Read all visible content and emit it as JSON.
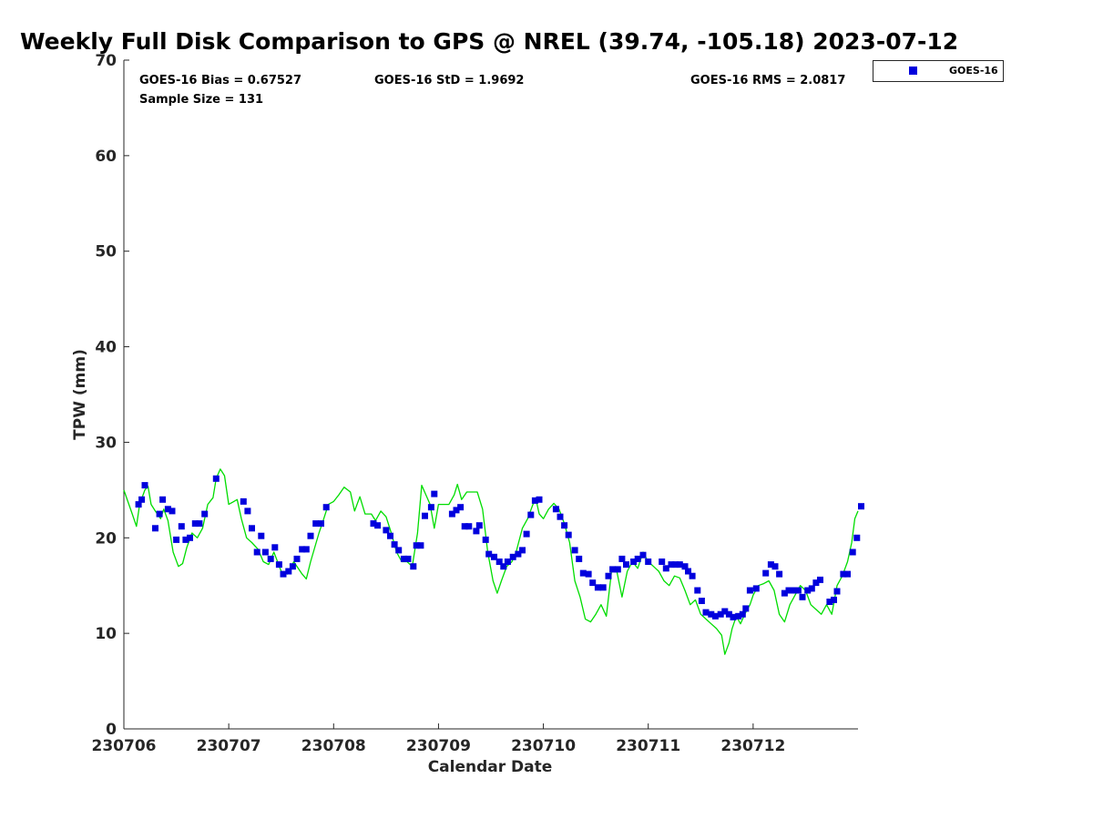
{
  "chart_data": {
    "type": "line+scatter",
    "title": "Weekly Full Disk Comparison to GPS @ NREL (39.74, -105.18) 2023-07-12",
    "xlabel": "Calendar Date",
    "ylabel": "TPW (mm)",
    "xlim": [
      230706,
      230713
    ],
    "ylim": [
      0,
      70
    ],
    "x_ticks": [
      "230706",
      "230707",
      "230708",
      "230709",
      "230710",
      "230711",
      "230712"
    ],
    "y_ticks": [
      "0",
      "10",
      "20",
      "30",
      "40",
      "50",
      "60",
      "70"
    ],
    "stats": {
      "bias": "GOES-16 Bias = 0.67527",
      "std": "GOES-16 StD = 1.9692",
      "rms": "GOES-16 RMS = 2.0817",
      "sample": "Sample Size = 131"
    },
    "legend": [
      {
        "name": "GOES-16",
        "color": "#0000dd",
        "marker": "square"
      }
    ],
    "series": [
      {
        "name": "GPS",
        "type": "line",
        "color": "#00dd00",
        "points": [
          [
            0.0,
            25.0
          ],
          [
            0.08,
            22.5
          ],
          [
            0.12,
            21.2
          ],
          [
            0.15,
            23.5
          ],
          [
            0.2,
            25.0
          ],
          [
            0.23,
            25.4
          ],
          [
            0.26,
            23.5
          ],
          [
            0.3,
            22.8
          ],
          [
            0.35,
            22.0
          ],
          [
            0.38,
            23.0
          ],
          [
            0.42,
            21.8
          ],
          [
            0.47,
            18.5
          ],
          [
            0.52,
            17.0
          ],
          [
            0.56,
            17.3
          ],
          [
            0.6,
            19.0
          ],
          [
            0.65,
            20.5
          ],
          [
            0.7,
            20.0
          ],
          [
            0.75,
            21.0
          ],
          [
            0.8,
            23.5
          ],
          [
            0.85,
            24.2
          ],
          [
            0.88,
            26.2
          ],
          [
            0.92,
            27.2
          ],
          [
            0.96,
            26.5
          ],
          [
            1.0,
            23.5
          ],
          [
            1.08,
            24.0
          ],
          [
            1.12,
            22.0
          ],
          [
            1.17,
            20.0
          ],
          [
            1.22,
            19.5
          ],
          [
            1.28,
            18.8
          ],
          [
            1.33,
            17.5
          ],
          [
            1.38,
            17.2
          ],
          [
            1.43,
            18.5
          ],
          [
            1.5,
            16.5
          ],
          [
            1.56,
            16.2
          ],
          [
            1.62,
            17.5
          ],
          [
            1.7,
            16.2
          ],
          [
            1.74,
            15.7
          ],
          [
            1.78,
            17.5
          ],
          [
            1.86,
            20.5
          ],
          [
            1.9,
            21.8
          ],
          [
            1.95,
            23.5
          ],
          [
            2.0,
            23.8
          ],
          [
            2.05,
            24.5
          ],
          [
            2.1,
            25.3
          ],
          [
            2.16,
            24.8
          ],
          [
            2.2,
            22.8
          ],
          [
            2.25,
            24.3
          ],
          [
            2.3,
            22.5
          ],
          [
            2.36,
            22.5
          ],
          [
            2.4,
            21.8
          ],
          [
            2.45,
            22.8
          ],
          [
            2.5,
            22.2
          ],
          [
            2.55,
            20.5
          ],
          [
            2.6,
            18.5
          ],
          [
            2.65,
            17.5
          ],
          [
            2.7,
            17.5
          ],
          [
            2.75,
            17.0
          ],
          [
            2.8,
            20.5
          ],
          [
            2.84,
            25.5
          ],
          [
            2.88,
            24.5
          ],
          [
            2.92,
            23.5
          ],
          [
            2.96,
            21.0
          ],
          [
            3.0,
            23.5
          ],
          [
            3.05,
            23.5
          ],
          [
            3.1,
            23.5
          ],
          [
            3.15,
            24.5
          ],
          [
            3.18,
            25.6
          ],
          [
            3.22,
            24.0
          ],
          [
            3.27,
            24.8
          ],
          [
            3.32,
            24.8
          ],
          [
            3.37,
            24.8
          ],
          [
            3.42,
            23.0
          ],
          [
            3.47,
            18.5
          ],
          [
            3.52,
            15.5
          ],
          [
            3.56,
            14.2
          ],
          [
            3.6,
            15.5
          ],
          [
            3.65,
            17.0
          ],
          [
            3.7,
            17.5
          ],
          [
            3.74,
            18.5
          ],
          [
            3.8,
            21.0
          ],
          [
            3.85,
            22.0
          ],
          [
            3.9,
            23.5
          ],
          [
            3.93,
            24.0
          ],
          [
            3.96,
            22.5
          ],
          [
            4.0,
            22.0
          ],
          [
            4.05,
            23.0
          ],
          [
            4.1,
            23.6
          ],
          [
            4.15,
            23.0
          ],
          [
            4.2,
            21.5
          ],
          [
            4.25,
            19.5
          ],
          [
            4.3,
            15.5
          ],
          [
            4.35,
            13.8
          ],
          [
            4.4,
            11.5
          ],
          [
            4.45,
            11.2
          ],
          [
            4.5,
            12.0
          ],
          [
            4.55,
            13.0
          ],
          [
            4.6,
            11.8
          ],
          [
            4.65,
            16.5
          ],
          [
            4.7,
            16.5
          ],
          [
            4.75,
            13.8
          ],
          [
            4.8,
            16.5
          ],
          [
            4.85,
            17.5
          ],
          [
            4.9,
            16.8
          ],
          [
            4.95,
            18.5
          ],
          [
            5.0,
            17.5
          ],
          [
            5.05,
            17.0
          ],
          [
            5.1,
            16.5
          ],
          [
            5.15,
            15.5
          ],
          [
            5.2,
            15.0
          ],
          [
            5.25,
            16.0
          ],
          [
            5.3,
            15.8
          ],
          [
            5.35,
            14.5
          ],
          [
            5.4,
            13.0
          ],
          [
            5.45,
            13.5
          ],
          [
            5.5,
            12.0
          ],
          [
            5.55,
            11.5
          ],
          [
            5.6,
            11.0
          ],
          [
            5.65,
            10.5
          ],
          [
            5.7,
            9.8
          ],
          [
            5.73,
            7.8
          ],
          [
            5.77,
            9.0
          ],
          [
            5.8,
            10.5
          ],
          [
            5.84,
            11.8
          ],
          [
            5.88,
            11.0
          ],
          [
            5.92,
            12.0
          ],
          [
            5.97,
            13.0
          ],
          [
            6.0,
            14.0
          ],
          [
            6.05,
            15.0
          ],
          [
            6.1,
            15.2
          ],
          [
            6.15,
            15.5
          ],
          [
            6.2,
            14.5
          ],
          [
            6.25,
            12.0
          ],
          [
            6.3,
            11.2
          ],
          [
            6.35,
            13.0
          ],
          [
            6.4,
            14.0
          ],
          [
            6.45,
            15.0
          ],
          [
            6.5,
            14.5
          ],
          [
            6.55,
            13.0
          ],
          [
            6.6,
            12.5
          ],
          [
            6.65,
            12.0
          ],
          [
            6.7,
            13.0
          ],
          [
            6.75,
            12.0
          ],
          [
            6.8,
            15.0
          ],
          [
            6.85,
            16.0
          ],
          [
            6.9,
            17.5
          ],
          [
            6.94,
            19.5
          ],
          [
            6.97,
            22.0
          ],
          [
            7.0,
            22.8
          ]
        ]
      },
      {
        "name": "GOES-16",
        "type": "scatter",
        "color": "#0000dd",
        "points": [
          [
            0.14,
            23.5
          ],
          [
            0.17,
            24.0
          ],
          [
            0.2,
            25.5
          ],
          [
            0.3,
            21.0
          ],
          [
            0.34,
            22.5
          ],
          [
            0.37,
            24.0
          ],
          [
            0.42,
            23.0
          ],
          [
            0.46,
            22.8
          ],
          [
            0.5,
            19.8
          ],
          [
            0.55,
            21.2
          ],
          [
            0.59,
            19.8
          ],
          [
            0.63,
            20.0
          ],
          [
            0.68,
            21.5
          ],
          [
            0.72,
            21.5
          ],
          [
            0.77,
            22.5
          ],
          [
            0.88,
            26.2
          ],
          [
            1.14,
            23.8
          ],
          [
            1.18,
            22.8
          ],
          [
            1.22,
            21.0
          ],
          [
            1.27,
            18.5
          ],
          [
            1.31,
            20.2
          ],
          [
            1.35,
            18.5
          ],
          [
            1.4,
            17.8
          ],
          [
            1.44,
            19.0
          ],
          [
            1.48,
            17.2
          ],
          [
            1.52,
            16.2
          ],
          [
            1.57,
            16.5
          ],
          [
            1.61,
            17.0
          ],
          [
            1.65,
            17.8
          ],
          [
            1.7,
            18.8
          ],
          [
            1.74,
            18.8
          ],
          [
            1.78,
            20.2
          ],
          [
            1.83,
            21.5
          ],
          [
            1.88,
            21.5
          ],
          [
            1.93,
            23.2
          ],
          [
            2.38,
            21.5
          ],
          [
            2.42,
            21.3
          ],
          [
            2.5,
            20.8
          ],
          [
            2.54,
            20.2
          ],
          [
            2.58,
            19.3
          ],
          [
            2.62,
            18.7
          ],
          [
            2.67,
            17.8
          ],
          [
            2.71,
            17.8
          ],
          [
            2.76,
            17.0
          ],
          [
            2.79,
            19.2
          ],
          [
            2.83,
            19.2
          ],
          [
            2.87,
            22.3
          ],
          [
            2.93,
            23.2
          ],
          [
            2.96,
            24.6
          ],
          [
            3.13,
            22.5
          ],
          [
            3.17,
            22.9
          ],
          [
            3.21,
            23.2
          ],
          [
            3.25,
            21.2
          ],
          [
            3.29,
            21.2
          ],
          [
            3.36,
            20.7
          ],
          [
            3.39,
            21.3
          ],
          [
            3.45,
            19.8
          ],
          [
            3.48,
            18.3
          ],
          [
            3.53,
            18.0
          ],
          [
            3.58,
            17.5
          ],
          [
            3.62,
            17.0
          ],
          [
            3.66,
            17.5
          ],
          [
            3.71,
            18.0
          ],
          [
            3.76,
            18.3
          ],
          [
            3.8,
            18.7
          ],
          [
            3.84,
            20.4
          ],
          [
            3.88,
            22.4
          ],
          [
            3.92,
            23.9
          ],
          [
            3.96,
            24.0
          ],
          [
            4.12,
            23.0
          ],
          [
            4.16,
            22.2
          ],
          [
            4.2,
            21.3
          ],
          [
            4.24,
            20.3
          ],
          [
            4.3,
            18.7
          ],
          [
            4.34,
            17.8
          ],
          [
            4.38,
            16.3
          ],
          [
            4.43,
            16.2
          ],
          [
            4.47,
            15.3
          ],
          [
            4.52,
            14.8
          ],
          [
            4.57,
            14.8
          ],
          [
            4.62,
            16.0
          ],
          [
            4.66,
            16.7
          ],
          [
            4.71,
            16.7
          ],
          [
            4.75,
            17.8
          ],
          [
            4.79,
            17.2
          ],
          [
            4.86,
            17.5
          ],
          [
            4.9,
            17.8
          ],
          [
            4.95,
            18.2
          ],
          [
            5.0,
            17.5
          ],
          [
            5.13,
            17.5
          ],
          [
            5.17,
            16.8
          ],
          [
            5.22,
            17.2
          ],
          [
            5.26,
            17.2
          ],
          [
            5.3,
            17.2
          ],
          [
            5.35,
            17.0
          ],
          [
            5.38,
            16.5
          ],
          [
            5.42,
            16.0
          ],
          [
            5.47,
            14.5
          ],
          [
            5.51,
            13.4
          ],
          [
            5.55,
            12.2
          ],
          [
            5.6,
            12.0
          ],
          [
            5.64,
            11.8
          ],
          [
            5.69,
            12.0
          ],
          [
            5.73,
            12.3
          ],
          [
            5.77,
            12.0
          ],
          [
            5.81,
            11.7
          ],
          [
            5.86,
            11.8
          ],
          [
            5.9,
            12.0
          ],
          [
            5.93,
            12.6
          ],
          [
            5.97,
            14.5
          ],
          [
            6.03,
            14.7
          ],
          [
            6.12,
            16.3
          ],
          [
            6.17,
            17.2
          ],
          [
            6.21,
            17.0
          ],
          [
            6.25,
            16.2
          ],
          [
            6.3,
            14.2
          ],
          [
            6.34,
            14.5
          ],
          [
            6.38,
            14.5
          ],
          [
            6.43,
            14.5
          ],
          [
            6.47,
            13.8
          ],
          [
            6.52,
            14.5
          ],
          [
            6.56,
            14.7
          ],
          [
            6.6,
            15.3
          ],
          [
            6.64,
            15.6
          ],
          [
            6.73,
            13.3
          ],
          [
            6.77,
            13.5
          ],
          [
            6.8,
            14.4
          ],
          [
            6.86,
            16.2
          ],
          [
            6.9,
            16.2
          ],
          [
            6.95,
            18.5
          ],
          [
            6.99,
            20.0
          ],
          [
            7.03,
            23.3
          ]
        ]
      }
    ]
  }
}
